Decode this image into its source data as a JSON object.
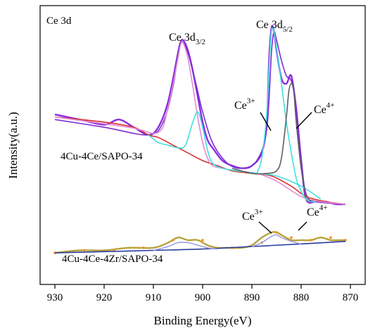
{
  "chart_data": {
    "type": "line",
    "title": "",
    "panel_label": "Ce 3d",
    "xlabel": "Binding Energy(eV)",
    "ylabel": "Intensity(a.u.)",
    "xlim": [
      933,
      867
    ],
    "x_reversed": true,
    "xticks": [
      930,
      920,
      910,
      900,
      890,
      880,
      870
    ],
    "xtick_labels": [
      "930",
      "920",
      "910",
      "900",
      "890",
      "880",
      "870"
    ],
    "ylim": [
      0,
      100
    ],
    "yticks_shown": false,
    "grid": false,
    "legend": "none",
    "annotations": {
      "peak_3d32": {
        "base": "Ce 3d",
        "sub": "3/2"
      },
      "peak_3d52": {
        "base": "Ce 3d",
        "sub": "5/2"
      },
      "ce3_top": {
        "base": "Ce",
        "sup": "3+"
      },
      "ce4_top": {
        "base": "Ce",
        "sup": "4+"
      },
      "ce3_bottom": {
        "base": "Ce",
        "sup": "3+"
      },
      "ce4_bottom": {
        "base": "Ce",
        "sup": "4+"
      }
    },
    "samples": [
      {
        "name": "4Cu-4Ce/SAPO-34",
        "series": [
          {
            "role": "raw",
            "color": "#8a2be2",
            "x": [
              930,
              925,
              920,
              917,
              914,
              911,
              909,
              907,
              905,
              904.5,
              904,
              903,
              902,
              901,
              900,
              899,
              898,
              896,
              894,
              892,
              890,
              888,
              887,
              886.5,
              886,
              885.5,
              885,
              884,
              883,
              882,
              881,
              880,
              879,
              877,
              875,
              873,
              871
            ],
            "y": [
              63,
              61,
              59,
              61,
              58,
              55,
              58,
              68,
              87,
              91,
              92,
              88,
              80,
              70,
              60,
              53,
              50,
              45,
              43,
              42,
              43,
              48,
              60,
              85,
              97,
              95,
              88,
              77,
              75,
              78,
              65,
              45,
              30,
              29,
              29,
              28,
              28
            ]
          },
          {
            "role": "fit-envelope",
            "color": "#7b2fd0",
            "x": [
              930,
              920,
              911,
              908,
              906,
              905,
              904.5,
              904,
              903,
              902,
              901,
              900,
              898,
              895,
              892,
              889,
              887,
              886,
              885.5,
              885,
              884,
              883,
              882,
              881,
              880,
              879,
              877,
              871
            ],
            "y": [
              61,
              58,
              55,
              60,
              74,
              87,
              91,
              91,
              87,
              80,
              72,
              64,
              52,
              44,
              42,
              45,
              57,
              88,
              95,
              92,
              84,
              78,
              76,
              66,
              46,
              32,
              29,
              28
            ]
          },
          {
            "role": "background",
            "color": "#d93030",
            "x": [
              930,
              920,
              914,
              911,
              909,
              906,
              903,
              900,
              897,
              894,
              890,
              886,
              882,
              879,
              875,
              871
            ],
            "y": [
              62,
              60,
              58,
              55,
              54,
              51,
              48,
              45,
              43,
              41,
              40,
              39,
              35,
              31,
              29,
              28
            ]
          },
          {
            "role": "Ce3+ (3d3/2)",
            "color": "#e58ad0",
            "x": [
              930,
              915,
              909,
              907,
              905,
              904.5,
              904,
              903,
              902,
              901,
              900,
              899,
              898,
              896,
              893,
              889,
              885,
              880,
              876,
              871
            ],
            "y": [
              62,
              58,
              56,
              66,
              85,
              90,
              91,
              85,
              74,
              62,
              52,
              46,
              43,
              42,
              41,
              40,
              37,
              31,
              29,
              28
            ]
          },
          {
            "role": "Ce4+ (3d3/2)",
            "color": "#40e0e0",
            "x": [
              911,
              909,
              907,
              905,
              903.5,
              902,
              901,
              900,
              899,
              898,
              896,
              893,
              889,
              885,
              880,
              876
            ],
            "y": [
              55,
              52,
              51,
              50,
              51,
              60,
              64,
              58,
              49,
              44,
              42,
              41,
              40,
              39,
              35,
              30
            ]
          },
          {
            "role": "Ce3+ (3d5/2)",
            "color": "#40e0e0",
            "x": [
              889,
              888,
              887,
              886.5,
              886,
              885.5,
              885,
              884,
              883,
              882,
              881,
              880,
              879,
              878,
              877
            ],
            "y": [
              40,
              46,
              63,
              82,
              96,
              95,
              89,
              75,
              60,
              48,
              38,
              33,
              30,
              29,
              29
            ]
          },
          {
            "role": "Ce4+ (3d5/2)",
            "color": "#606060",
            "x": [
              894,
              890,
              887,
              885,
              884,
              883,
              882.5,
              882,
              881.5,
              881,
              880,
              879,
              878
            ],
            "y": [
              42,
              40,
              40,
              41,
              46,
              62,
              72,
              75,
              72,
              60,
              42,
              32,
              29
            ]
          }
        ]
      },
      {
        "name": "4Cu-4Ce-4Zr/SAPO-34",
        "series": [
          {
            "role": "raw",
            "color": "#b5a23a",
            "x": [
              930,
              925,
              920,
              915,
              910,
              907,
              905,
              903,
              901,
              899,
              897,
              895,
              892,
              890,
              888,
              886,
              885,
              884,
              882,
              880,
              878,
              876,
              874,
              872,
              871
            ],
            "y": [
              9,
              10,
              10,
              11,
              11,
              13,
              15,
              14,
              14,
              12,
              11,
              11,
              11,
              12,
              15,
              17,
              17,
              16,
              14,
              14,
              14,
              15,
              14,
              14,
              14
            ]
          },
          {
            "role": "scatter",
            "color": "#ff8c1a",
            "x": [
              930,
              924,
              918,
              912,
              906,
              900,
              894,
              888,
              885,
              882,
              878,
              874,
              871
            ],
            "y": [
              9,
              10,
              10,
              11,
              14,
              14,
              11,
              13,
              17,
              15,
              14,
              15,
              14
            ]
          },
          {
            "role": "background",
            "color": "#2a3da0",
            "x": [
              930,
              920,
              910,
              900,
              890,
              880,
              871
            ],
            "y": [
              9,
              9.5,
              10,
              10.5,
              11.5,
              12.5,
              13.5
            ]
          },
          {
            "role": "fit",
            "color": "#a0a0e0",
            "x": [
              910,
              907,
              905,
              903,
              901,
              899,
              897
            ],
            "y": [
              10,
              11.5,
              13,
              13,
              12,
              11,
              10.5
            ]
          },
          {
            "role": "fit",
            "color": "#a0a0e0",
            "x": [
              890,
              888,
              886,
              885,
              884,
              882,
              880
            ],
            "y": [
              11.5,
              13,
              15.5,
              16,
              15,
              13.5,
              12.5
            ]
          }
        ]
      }
    ]
  }
}
